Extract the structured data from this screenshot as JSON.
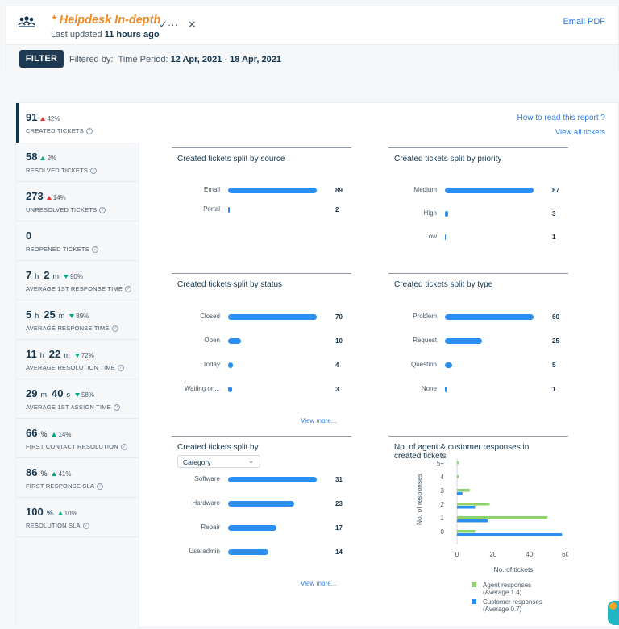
{
  "header": {
    "title": "* Helpdesk In-depth",
    "updated_prefix": "Last updated",
    "updated_value": "11 hours ago",
    "save_icon": "check-dots-icon",
    "close_icon": "close-icon",
    "email_pdf": "Email PDF"
  },
  "filter": {
    "button": "FILTER",
    "filtered_by": "Filtered by:",
    "period_label": "Time Period:",
    "period_value": "12 Apr, 2021 - 18 Apr, 2021"
  },
  "links": {
    "how_to": "How to read this report ?",
    "view_all": "View all tickets"
  },
  "kpis": [
    {
      "value": "91",
      "delta": "42%",
      "dir": "up-red",
      "label": "CREATED TICKETS"
    },
    {
      "value": "58",
      "delta": "2%",
      "dir": "up-green",
      "label": "RESOLVED TICKETS"
    },
    {
      "value": "273",
      "delta": "14%",
      "dir": "up-red",
      "label": "UNRESOLVED TICKETS"
    },
    {
      "value": "0",
      "delta": "",
      "dir": "",
      "label": "REOPENED TICKETS"
    },
    {
      "value_parts": [
        "7",
        "h",
        "2",
        "m"
      ],
      "delta": "90%",
      "dir": "down-green",
      "label": "AVERAGE 1ST RESPONSE TIME"
    },
    {
      "value_parts": [
        "5",
        "h",
        "25",
        "m"
      ],
      "delta": "89%",
      "dir": "down-green",
      "label": "AVERAGE RESPONSE TIME"
    },
    {
      "value_parts": [
        "11",
        "h",
        "22",
        "m"
      ],
      "delta": "72%",
      "dir": "down-green",
      "label": "AVERAGE RESOLUTION TIME"
    },
    {
      "value_parts": [
        "29",
        "m",
        "40",
        "s"
      ],
      "delta": "58%",
      "dir": "down-green",
      "label": "AVERAGE 1ST ASSIGN TIME"
    },
    {
      "value_parts": [
        "66",
        "%"
      ],
      "delta": "14%",
      "dir": "up-green",
      "label": "FIRST CONTACT RESOLUTION"
    },
    {
      "value_parts": [
        "86",
        "%"
      ],
      "delta": "41%",
      "dir": "up-green",
      "label": "FIRST RESPONSE SLA"
    },
    {
      "value_parts": [
        "100",
        "%"
      ],
      "delta": "10%",
      "dir": "up-green",
      "label": "RESOLUTION SLA"
    }
  ],
  "cards": {
    "source": {
      "title": "Created tickets split by source",
      "max": 89,
      "rows": [
        {
          "label": "Email",
          "value": 89
        },
        {
          "label": "Portal",
          "value": 2
        }
      ]
    },
    "priority": {
      "title": "Created tickets split by priority",
      "max": 87,
      "rows": [
        {
          "label": "Medium",
          "value": 87
        },
        {
          "label": "High",
          "value": 3
        },
        {
          "label": "Low",
          "value": 1
        }
      ]
    },
    "status": {
      "title": "Created tickets split by status",
      "max": 70,
      "rows": [
        {
          "label": "Closed",
          "value": 70
        },
        {
          "label": "Open",
          "value": 10
        },
        {
          "label": "Today",
          "value": 4
        },
        {
          "label": "Waiting on...",
          "value": 3
        }
      ],
      "view_more": "View more..."
    },
    "type": {
      "title": "Created tickets split by type",
      "max": 60,
      "rows": [
        {
          "label": "Problem",
          "value": 60
        },
        {
          "label": "Request",
          "value": 25
        },
        {
          "label": "Question",
          "value": 5
        },
        {
          "label": "None",
          "value": 1
        }
      ]
    },
    "category": {
      "title": "Created tickets split by",
      "select": "Category",
      "max": 31,
      "rows": [
        {
          "label": "Software",
          "value": 31
        },
        {
          "label": "Hardware",
          "value": 23
        },
        {
          "label": "Repair",
          "value": 17
        },
        {
          "label": "Useradmin",
          "value": 14
        }
      ],
      "view_more": "View more..."
    },
    "responses": {
      "title": "No. of agent & customer responses in created tickets"
    }
  },
  "chart_data": {
    "type": "bar",
    "orientation": "horizontal",
    "title": "No. of agent & customer responses in created tickets",
    "categories": [
      "5+",
      "4",
      "3",
      "2",
      "1",
      "0"
    ],
    "series": [
      {
        "name": "Agent responses",
        "sub": "(Average 1.4)",
        "color": "#8fd16a",
        "values": [
          1,
          1,
          7,
          18,
          50,
          10
        ]
      },
      {
        "name": "Customer responses",
        "sub": "(Average 0.7)",
        "color": "#2c8ef0",
        "values": [
          0,
          0,
          3,
          10,
          17,
          58
        ]
      }
    ],
    "xlabel": "No. of tickets",
    "ylabel": "No. of responses",
    "xlim": [
      0,
      60
    ],
    "xticks": [
      "0",
      "20",
      "40",
      "60"
    ],
    "legend": "bottom"
  }
}
